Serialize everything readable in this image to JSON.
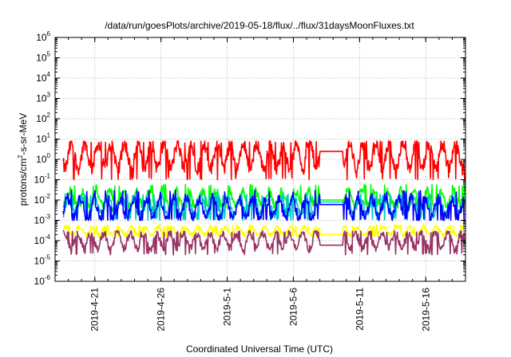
{
  "chart_data": {
    "type": "line",
    "title": "/data/run/goesPlots/archive/2019-05-18/flux/../flux/31daysMoonFluxes.txt",
    "xlabel": "Coordinated Universal Time (UTC)",
    "ylabel_parts": [
      "protons/cm",
      "2",
      "-s-sr-MeV"
    ],
    "y_scale": "log",
    "ylim": [
      1e-06,
      1000000.0
    ],
    "xlim": [
      "2019-04-18",
      "2019-05-19"
    ],
    "grid": true,
    "legend": "none",
    "y_ticks": [
      {
        "exp": "-6",
        "value": 1e-06
      },
      {
        "exp": "-5",
        "value": 1e-05
      },
      {
        "exp": "-4",
        "value": 0.0001
      },
      {
        "exp": "-3",
        "value": 0.001
      },
      {
        "exp": "-2",
        "value": 0.01
      },
      {
        "exp": "-1",
        "value": 0.1
      },
      {
        "exp": "0",
        "value": 1
      },
      {
        "exp": "1",
        "value": 10
      },
      {
        "exp": "2",
        "value": 100
      },
      {
        "exp": "3",
        "value": 1000
      },
      {
        "exp": "4",
        "value": 10000
      },
      {
        "exp": "5",
        "value": 100000
      },
      {
        "exp": "6",
        "value": 1000000
      }
    ],
    "x_ticks": [
      {
        "label": "2019-4-21",
        "date": "2019-04-21"
      },
      {
        "label": "2019-4-26",
        "date": "2019-04-26"
      },
      {
        "label": "2019-5-1",
        "date": "2019-05-01"
      },
      {
        "label": "2019-5-6",
        "date": "2019-05-06"
      },
      {
        "label": "2019-5-11",
        "date": "2019-05-11"
      },
      {
        "label": "2019-5-16",
        "date": "2019-05-16"
      }
    ],
    "data_gap": [
      "2019-05-08",
      "2019-05-09"
    ],
    "series": [
      {
        "color": "#ff0000",
        "min": 0.1,
        "max": 8,
        "typical": 1.5,
        "gap_level": 2.5
      },
      {
        "color": "#00ff00",
        "min": 0.004,
        "max": 0.06,
        "typical": 0.012,
        "gap_level": 0.01
      },
      {
        "color": "#00c8c8",
        "min": 0.001,
        "max": 0.02,
        "typical": 0.005,
        "gap_level": 0.008
      },
      {
        "color": "#0000ff",
        "min": 0.001,
        "max": 0.03,
        "typical": 0.004,
        "gap_level": 0.006
      },
      {
        "color": "#ffff00",
        "min": 0.00015,
        "max": 0.0006,
        "typical": 0.0003,
        "gap_level": 0.0002
      },
      {
        "color": "#993366",
        "min": 2e-05,
        "max": 0.0003,
        "typical": 0.0001,
        "gap_level": 6e-05
      }
    ]
  }
}
